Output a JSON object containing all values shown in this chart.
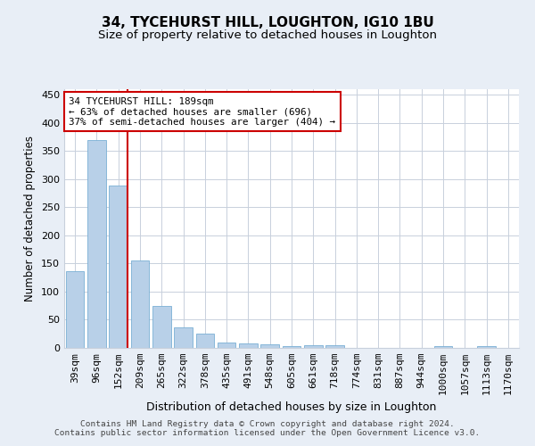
{
  "title": "34, TYCEHURST HILL, LOUGHTON, IG10 1BU",
  "subtitle": "Size of property relative to detached houses in Loughton",
  "xlabel": "Distribution of detached houses by size in Loughton",
  "ylabel": "Number of detached properties",
  "categories": [
    "39sqm",
    "96sqm",
    "152sqm",
    "209sqm",
    "265sqm",
    "322sqm",
    "378sqm",
    "435sqm",
    "491sqm",
    "548sqm",
    "605sqm",
    "661sqm",
    "718sqm",
    "774sqm",
    "831sqm",
    "887sqm",
    "944sqm",
    "1000sqm",
    "1057sqm",
    "1113sqm",
    "1170sqm"
  ],
  "values": [
    136,
    370,
    289,
    155,
    74,
    37,
    25,
    10,
    8,
    6,
    3,
    4,
    4,
    0,
    0,
    0,
    0,
    3,
    0,
    3,
    0
  ],
  "bar_color": "#b8d0e8",
  "bar_edge_color": "#7aafd4",
  "vline_color": "#cc0000",
  "annotation_text": "34 TYCEHURST HILL: 189sqm\n← 63% of detached houses are smaller (696)\n37% of semi-detached houses are larger (404) →",
  "annotation_box_color": "#ffffff",
  "annotation_box_edge": "#cc0000",
  "ylim": [
    0,
    460
  ],
  "yticks": [
    0,
    50,
    100,
    150,
    200,
    250,
    300,
    350,
    400,
    450
  ],
  "footer_line1": "Contains HM Land Registry data © Crown copyright and database right 2024.",
  "footer_line2": "Contains public sector information licensed under the Open Government Licence v3.0.",
  "bg_color": "#e8eef6",
  "plot_bg_color": "#ffffff",
  "grid_color": "#c8d0dc",
  "title_fontsize": 11,
  "subtitle_fontsize": 9.5,
  "xlabel_fontsize": 9,
  "ylabel_fontsize": 8.5,
  "tick_fontsize": 8,
  "annotation_fontsize": 7.8,
  "footer_fontsize": 6.8
}
